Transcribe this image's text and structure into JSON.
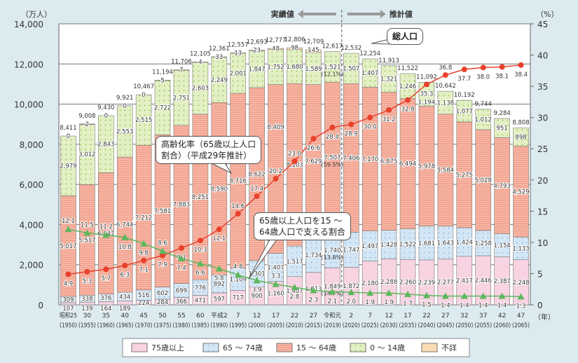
{
  "chart_data": {
    "type": "bar",
    "title": "",
    "ylabel_left": "（万人）",
    "ylabel_right": "（%）",
    "xlabel": "（年）",
    "ylim_left": [
      0,
      14000
    ],
    "ylim_right": [
      0,
      45
    ],
    "yticks_left": [
      "0",
      "2,000",
      "4,000",
      "6,000",
      "8,000",
      "10,000",
      "12,000",
      "14,000"
    ],
    "yticks_right": [
      "0",
      "5",
      "10",
      "15",
      "20",
      "25",
      "30",
      "35",
      "40",
      "45"
    ],
    "categories": [
      "昭和25",
      "30",
      "35",
      "40",
      "45",
      "50",
      "55",
      "60",
      "平成2",
      "7",
      "12",
      "17",
      "22",
      "27",
      "令和元",
      "2",
      "7",
      "12",
      "17",
      "22",
      "27",
      "32",
      "37",
      "42",
      "47"
    ],
    "categories_year": [
      "(1950)",
      "(1955)",
      "(1960)",
      "(1965)",
      "(1970)",
      "(1975)",
      "(1980)",
      "(1985)",
      "(1990)",
      "(1995)",
      "(2000)",
      "(2005)",
      "(2010)",
      "(2015)",
      "(2019)",
      "(2020)",
      "(2025)",
      "(2030)",
      "(2035)",
      "(2040)",
      "(2045)",
      "(2050)",
      "(2055)",
      "(2060)",
      "(2065)"
    ],
    "total": [
      8411,
      9008,
      9430,
      9921,
      10467,
      11194,
      11706,
      12105,
      12361,
      12557,
      12693,
      12777,
      12806,
      12709,
      12617,
      12532,
      12254,
      11913,
      11522,
      11092,
      10642,
      10192,
      9744,
      9284,
      8808
    ],
    "series": [
      {
        "name": "75歳以上",
        "color": "#f8d3e2",
        "values": [
          107,
          139,
          164,
          189,
          224,
          284,
          366,
          471,
          597,
          717,
          900,
          1160,
          1407,
          1613,
          1849,
          1872,
          2180,
          2288,
          2260,
          2239,
          2277,
          2417,
          2446,
          2387,
          2248
        ]
      },
      {
        "name": "65 ～ 74歳",
        "color": "#d3e6f5",
        "values": [
          309,
          338,
          376,
          434,
          516,
          602,
          699,
          776,
          892,
          1109,
          1301,
          1407,
          1517,
          1734,
          1740,
          1747,
          1497,
          1428,
          1522,
          1681,
          1643,
          1424,
          1258,
          1154,
          1133
        ]
      },
      {
        "name": "15 ～ 64歳",
        "color": "#f3a490",
        "values": [
          5017,
          5517,
          6047,
          6744,
          7212,
          7581,
          7883,
          8251,
          8590,
          8716,
          8622,
          8409,
          8103,
          7629,
          7507,
          7406,
          7170,
          6875,
          6494,
          5978,
          5584,
          5275,
          5028,
          4793,
          4529
        ]
      },
      {
        "name": "0 ～ 14歳",
        "color": "#e3f0c3",
        "values": [
          2979,
          3012,
          2843,
          2553,
          2515,
          2722,
          2751,
          2603,
          2249,
          2001,
          1847,
          1752,
          1680,
          1589,
          1521,
          1507,
          1407,
          1321,
          1246,
          1194,
          1138,
          1077,
          1012,
          951,
          898
        ]
      },
      {
        "name": "不詳",
        "color": "#fbdcb5",
        "values": [
          0,
          2,
          0,
          0,
          0,
          5,
          7,
          4,
          33,
          13,
          23,
          48,
          98,
          145,
          null,
          null,
          null,
          null,
          null,
          null,
          null,
          null,
          null,
          null,
          null
        ]
      }
    ],
    "share_2019": {
      "0_14": "(12.1%)",
      "15_64": "(59.5%)",
      "65_74": "(13.8%)",
      "75": "(14.7%)"
    },
    "lines": [
      {
        "name": "高齢化率",
        "axis": "right",
        "color": "#e8412c",
        "values": [
          4.9,
          5.3,
          5.7,
          6.3,
          7.1,
          7.9,
          9.1,
          10.3,
          12.1,
          14.6,
          17.4,
          20.2,
          23.0,
          26.6,
          28.4,
          28.9,
          30.0,
          31.2,
          32.8,
          35.3,
          36.8,
          37.7,
          38.0,
          38.1,
          38.4
        ]
      },
      {
        "name": "支える割合",
        "axis": "right",
        "color": "#5cb85c",
        "values": [
          12.1,
          11.5,
          11.2,
          10.8,
          9.8,
          8.6,
          7.4,
          6.6,
          5.8,
          4.8,
          3.9,
          3.3,
          2.8,
          2.3,
          2.1,
          2.0,
          1.9,
          1.9,
          1.7,
          1.5,
          1.4,
          1.4,
          1.4,
          1.4,
          1.3
        ]
      }
    ],
    "period_labels": {
      "actual": "実績値",
      "estimate": "推計値"
    }
  },
  "annotations": {
    "total_population": "総人口",
    "aging_rate_1": "高齢化率（65歳以上人口",
    "aging_rate_2": "割合）（平成29年推計）",
    "support_1": "65歳以上人口を15 ～",
    "support_2": "64歳人口で支える割合"
  }
}
